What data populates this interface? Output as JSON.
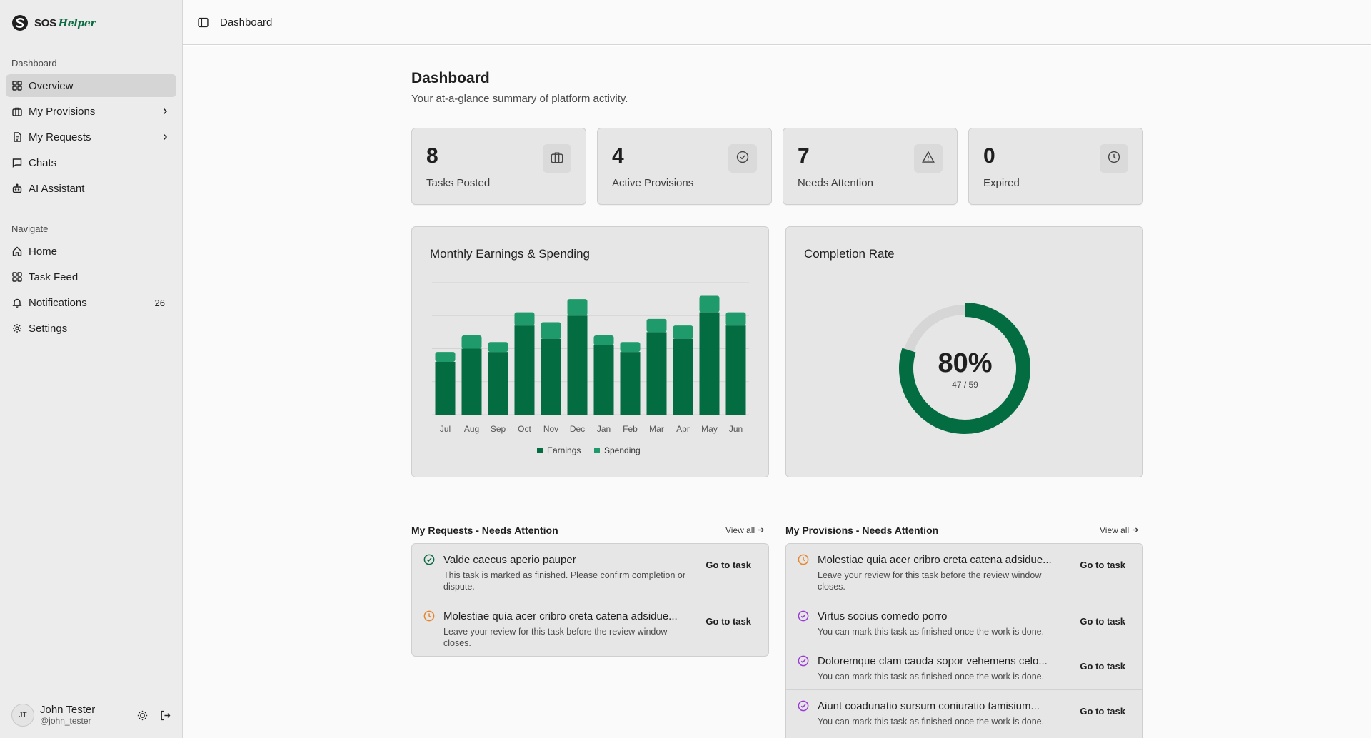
{
  "brand": {
    "name": "SOS",
    "accent": "Helper",
    "accent_color": "#0b6b42"
  },
  "header": {
    "breadcrumb": "Dashboard"
  },
  "sidebar": {
    "dashboard_label": "Dashboard",
    "dashboard_items": [
      {
        "label": "Overview",
        "icon": "grid-icon",
        "active": true
      },
      {
        "label": "My Provisions",
        "icon": "briefcase-icon",
        "has_chevron": true
      },
      {
        "label": "My Requests",
        "icon": "document-icon",
        "has_chevron": true
      },
      {
        "label": "Chats",
        "icon": "chat-icon"
      },
      {
        "label": "AI Assistant",
        "icon": "bot-icon"
      }
    ],
    "navigate_label": "Navigate",
    "navigate_items": [
      {
        "label": "Home",
        "icon": "home-icon"
      },
      {
        "label": "Task Feed",
        "icon": "grid-icon"
      },
      {
        "label": "Notifications",
        "icon": "bell-icon",
        "count": "26"
      },
      {
        "label": "Settings",
        "icon": "gear-icon"
      }
    ],
    "user": {
      "initials": "JT",
      "name": "John Tester",
      "handle": "@john_tester"
    }
  },
  "page": {
    "title": "Dashboard",
    "subtitle": "Your at-a-glance summary of platform activity."
  },
  "stats": [
    {
      "value": "8",
      "label": "Tasks Posted",
      "icon": "briefcase-icon"
    },
    {
      "value": "4",
      "label": "Active Provisions",
      "icon": "check-circle-icon"
    },
    {
      "value": "7",
      "label": "Needs Attention",
      "icon": "warning-icon"
    },
    {
      "value": "0",
      "label": "Expired",
      "icon": "clock-icon"
    }
  ],
  "earnings_card": {
    "title": "Monthly Earnings & Spending"
  },
  "completion_card": {
    "title": "Completion Rate",
    "percent": "80%",
    "ratio": "47 / 59",
    "fraction": 0.8
  },
  "chart_data": {
    "type": "bar",
    "stacked": true,
    "categories": [
      "Jul",
      "Aug",
      "Sep",
      "Oct",
      "Nov",
      "Dec",
      "Jan",
      "Feb",
      "Mar",
      "Apr",
      "May",
      "Jun"
    ],
    "series": [
      {
        "name": "Earnings",
        "color": "#046c41",
        "values": [
          16,
          20,
          19,
          27,
          23,
          30,
          21,
          19,
          25,
          23,
          31,
          27
        ]
      },
      {
        "name": "Spending",
        "color": "#1f9b6b",
        "values": [
          3,
          4,
          3,
          4,
          5,
          5,
          3,
          3,
          4,
          4,
          5,
          4
        ]
      }
    ],
    "ylim": [
      0,
      40
    ],
    "grid": true,
    "legend": "bottom"
  },
  "requests": {
    "title": "My Requests - Needs Attention",
    "view_all": "View all",
    "items": [
      {
        "icon": "check-circle-icon",
        "icon_color": "#0b6b42",
        "title": "Valde caecus aperio pauper",
        "desc": "This task is marked as finished. Please confirm completion or dispute.",
        "button": "Go to task"
      },
      {
        "icon": "clock-icon",
        "icon_color": "#e5862e",
        "title": "Molestiae quia acer cribro creta catena adsidue...",
        "desc": "Leave your review for this task before the review window closes.",
        "button": "Go to task"
      }
    ]
  },
  "provisions": {
    "title": "My Provisions - Needs Attention",
    "view_all": "View all",
    "items": [
      {
        "icon": "clock-icon",
        "icon_color": "#e5862e",
        "title": "Molestiae quia acer cribro creta catena adsidue...",
        "desc": "Leave your review for this task before the review window closes.",
        "button": "Go to task"
      },
      {
        "icon": "check-circle-icon",
        "icon_color": "#9b3bd6",
        "title": "Virtus socius comedo porro",
        "desc": "You can mark this task as finished once the work is done.",
        "button": "Go to task"
      },
      {
        "icon": "check-circle-icon",
        "icon_color": "#9b3bd6",
        "title": "Doloremque clam cauda sopor vehemens celo...",
        "desc": "You can mark this task as finished once the work is done.",
        "button": "Go to task"
      },
      {
        "icon": "check-circle-icon",
        "icon_color": "#9b3bd6",
        "title": "Aiunt coadunatio sursum coniuratio tamisium...",
        "desc": "You can mark this task as finished once the work is done.",
        "button": "Go to task"
      }
    ]
  }
}
